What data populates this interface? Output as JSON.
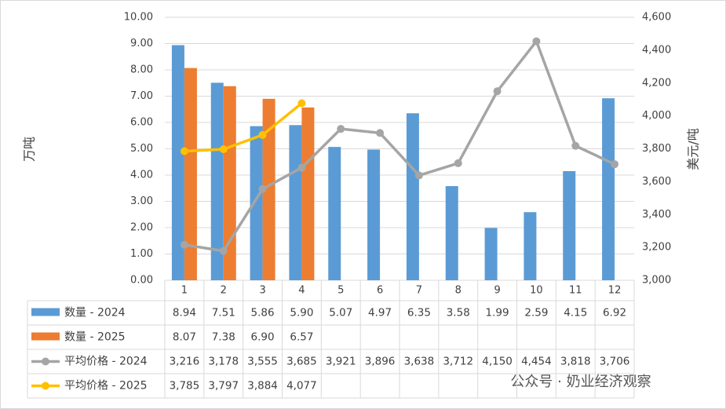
{
  "chart_data": {
    "type": "combo",
    "ylabel": "万吨",
    "y2label": "美元/吨",
    "categories": [
      "1",
      "2",
      "3",
      "4",
      "5",
      "6",
      "7",
      "8",
      "9",
      "10",
      "11",
      "12"
    ],
    "series": [
      {
        "name": "数量 - 2024",
        "type": "bar",
        "color": "#5b9bd5",
        "values": [
          8.94,
          7.51,
          5.86,
          5.9,
          5.07,
          4.97,
          6.35,
          3.58,
          1.99,
          2.59,
          4.15,
          6.92
        ],
        "value_labels": [
          "8.94",
          "7.51",
          "5.86",
          "5.90",
          "5.07",
          "4.97",
          "6.35",
          "3.58",
          "1.99",
          "2.59",
          "4.15",
          "6.92"
        ]
      },
      {
        "name": "数量 - 2025",
        "type": "bar",
        "color": "#ed7d31",
        "values": [
          8.07,
          7.38,
          6.9,
          6.57,
          null,
          null,
          null,
          null,
          null,
          null,
          null,
          null
        ],
        "value_labels": [
          "8.07",
          "7.38",
          "6.90",
          "6.57",
          null,
          null,
          null,
          null,
          null,
          null,
          null,
          null
        ]
      },
      {
        "name": "平均价格 - 2024",
        "type": "line",
        "axis": "y2",
        "color": "#a5a5a5",
        "values": [
          3216,
          3178,
          3555,
          3685,
          3921,
          3896,
          3638,
          3712,
          4150,
          4454,
          3818,
          3706
        ],
        "value_labels": [
          "3,216",
          "3,178",
          "3,555",
          "3,685",
          "3,921",
          "3,896",
          "3,638",
          "3,712",
          "4,150",
          "4,454",
          "3,818",
          "3,706"
        ]
      },
      {
        "name": "平均价格 - 2025",
        "type": "line",
        "axis": "y2",
        "color": "#ffc000",
        "values": [
          3785,
          3797,
          3884,
          4077,
          null,
          null,
          null,
          null,
          null,
          null,
          null,
          null
        ],
        "value_labels": [
          "3,785",
          "3,797",
          "3,884",
          "4,077",
          null,
          null,
          null,
          null,
          null,
          null,
          null,
          null
        ]
      }
    ],
    "ylim": [
      0,
      10
    ],
    "yticks": [
      {
        "value": 0,
        "label": "0.00"
      },
      {
        "value": 1,
        "label": "1.00"
      },
      {
        "value": 2,
        "label": "2.00"
      },
      {
        "value": 3,
        "label": "3.00"
      },
      {
        "value": 4,
        "label": "4.00"
      },
      {
        "value": 5,
        "label": "5.00"
      },
      {
        "value": 6,
        "label": "6.00"
      },
      {
        "value": 7,
        "label": "7.00"
      },
      {
        "value": 8,
        "label": "8.00"
      },
      {
        "value": 9,
        "label": "9.00"
      },
      {
        "value": 10,
        "label": "10.00"
      }
    ],
    "y2lim": [
      3000,
      4600
    ],
    "y2ticks": [
      {
        "value": 3000,
        "label": "3,000"
      },
      {
        "value": 3200,
        "label": "3,200"
      },
      {
        "value": 3400,
        "label": "3,400"
      },
      {
        "value": 3600,
        "label": "3,600"
      },
      {
        "value": 3800,
        "label": "3,800"
      },
      {
        "value": 4000,
        "label": "4,000"
      },
      {
        "value": 4200,
        "label": "4,200"
      },
      {
        "value": 4400,
        "label": "4,400"
      },
      {
        "value": 4600,
        "label": "4,600"
      }
    ],
    "data_table": true,
    "watermark": "公众号 · 奶业经济观察"
  }
}
